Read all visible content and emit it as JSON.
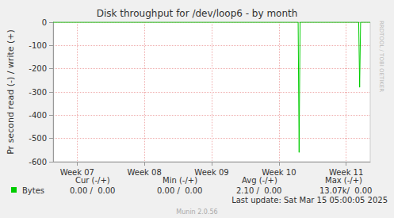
{
  "chart_data": {
    "type": "line",
    "title": "Disk throughput for /dev/loop6 - by month",
    "y_label": "Pr second read (-) / write (+)",
    "x": [
      0,
      25.5,
      25.6,
      25.7,
      31.8,
      31.9,
      32.0,
      33
    ],
    "series": [
      {
        "name": "Bytes",
        "color": "#00cc00",
        "values": [
          0,
          0,
          -560,
          0,
          0,
          -280,
          0,
          0
        ],
        "stats": [
          "0.00 /  0.00",
          "0.00 /  0.00",
          "2.10 /  0.00",
          "13.07k/  0.00"
        ]
      }
    ],
    "stats_headers": [
      "Cur (-/+)",
      "Min (-/+)",
      "Avg (-/+)",
      "Max (-/+)"
    ],
    "xlim": [
      0,
      33
    ],
    "xticks": [
      {
        "value": 2.5,
        "label": "Week 07"
      },
      {
        "value": 9.5,
        "label": "Week 08"
      },
      {
        "value": 16.5,
        "label": "Week 09"
      },
      {
        "value": 23.5,
        "label": "Week 10"
      },
      {
        "value": 30.5,
        "label": "Week 11"
      }
    ],
    "ylim": [
      -600,
      0
    ],
    "yticks": [
      -600,
      -500,
      -400,
      -300,
      -200,
      -100,
      0
    ],
    "grid": true,
    "annotations": [
      "Last update: Sat Mar 15 05:00:05 2025",
      "Munin 2.0.56",
      "RRDTOOL / TOBI OETIKER"
    ]
  }
}
